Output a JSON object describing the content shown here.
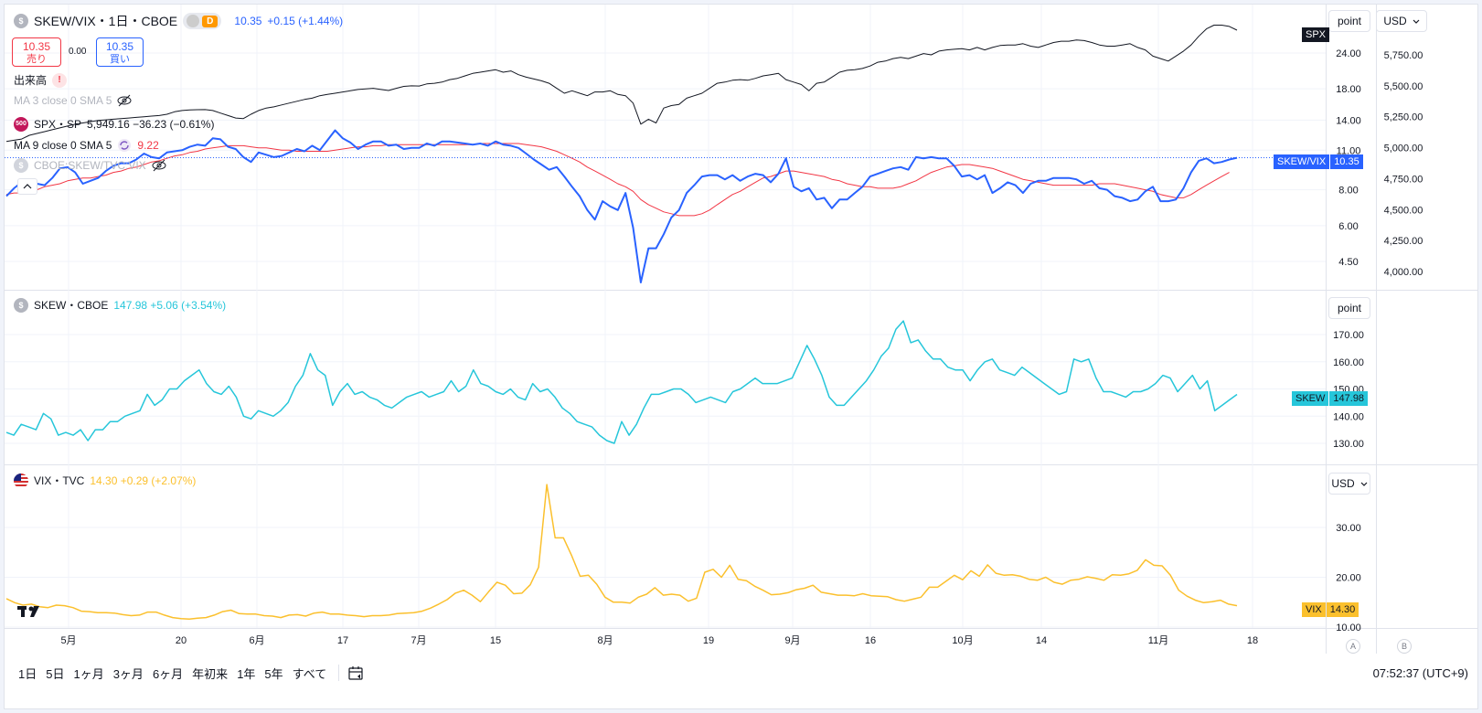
{
  "main_symbol": {
    "title": "SKEW/VIX・1日・CBOE",
    "interval_badge": "D",
    "last": "10.35",
    "change": "+0.15 (+1.44%)"
  },
  "trade": {
    "sell_price": "10.35",
    "sell_label": "売り",
    "spread": "0.00",
    "buy_price": "10.35",
    "buy_label": "買い"
  },
  "indicators": {
    "volume": "出来高",
    "volume_warn": "!",
    "ma1": "MA 3 close 0 SMA 5",
    "spx_icon": "500",
    "spx_name": "SPX・SP",
    "spx_value": "5,949.16 −36.23 (−0.61%)",
    "ma2": "MA 9 close 0 SMA 5",
    "ma2_value": "9.22",
    "compare": "CBOE:SKEW/TVC:VIX"
  },
  "skew_legend": {
    "name": "SKEW・CBOE",
    "value": "147.98 +5.06 (+3.54%)"
  },
  "vix_legend": {
    "name": "VIX・TVC",
    "value": "14.30 +0.29 (+2.07%)"
  },
  "scale_labels": {
    "point1": "point",
    "usd1": "USD",
    "point2": "point",
    "usd2": "USD"
  },
  "price_tags": {
    "spx": "SPX",
    "skewvix_name": "SKEW/VIX",
    "skewvix_val": "10.35",
    "skew_name": "SKEW",
    "skew_val": "147.98",
    "vix_name": "VIX",
    "vix_val": "14.30"
  },
  "bottom": {
    "ranges": [
      "1日",
      "5日",
      "1ヶ月",
      "3ヶ月",
      "6ヶ月",
      "年初来",
      "1年",
      "5年",
      "すべて"
    ],
    "clock": "07:52:37 (UTC+9)",
    "a_label": "A",
    "b_label": "B"
  },
  "colors": {
    "spx": "#131722",
    "skewvix": "#2962ff",
    "ma": "#f23645",
    "skew": "#26c6da",
    "vix": "#fbc02d",
    "grid": "#f0f3fa"
  },
  "chart_data": {
    "type": "line",
    "x_ticks": [
      "5月",
      "20",
      "6月",
      "17",
      "7月",
      "15",
      "8月",
      "19",
      "9月",
      "16",
      "10月",
      "14",
      "11月",
      "18"
    ],
    "panes": [
      {
        "name": "main",
        "left_axis_ticks": [
          "24.00",
          "18.00",
          "14.00",
          "11.00",
          "8.00",
          "6.00",
          "4.50"
        ],
        "right_axis_ticks": [
          "5,750.00",
          "5,500.00",
          "5,250.00",
          "5,000.00",
          "4,750.00",
          "4,500.00",
          "4,250.00",
          "4,000.00"
        ],
        "series": [
          {
            "name": "SKEW/VIX",
            "values": [
              7.6,
              8.1,
              8.5,
              8.6,
              8.4,
              8.3,
              8.8,
              9.5,
              9.6,
              9.2,
              8.4,
              8.6,
              8.8,
              9.3,
              9.7,
              9.9,
              9.9,
              10.2,
              10.7,
              10.4,
              10.3,
              10.8,
              10.9,
              11.0,
              11.3,
              11.5,
              11.4,
              12.1,
              12.0,
              11.3,
              11.1,
              10.4,
              10.0,
              10.8,
              10.6,
              10.4,
              10.5,
              10.8,
              11.1,
              10.9,
              11.4,
              11.0,
              11.9,
              12.9,
              12.1,
              11.7,
              11.1,
              11.5,
              11.8,
              11.8,
              11.4,
              11.5,
              11.1,
              11.2,
              11.2,
              11.6,
              11.4,
              11.8,
              11.8,
              11.7,
              11.6,
              11.5,
              11.6,
              11.4,
              11.8,
              11.5,
              11.4,
              11.2,
              10.7,
              10.2,
              9.8,
              9.4,
              9.6,
              8.9,
              8.2,
              7.6,
              6.8,
              6.3,
              7.3,
              7.0,
              6.8,
              7.8,
              5.9,
              3.8,
              5.0,
              5.0,
              5.6,
              6.4,
              6.8,
              7.8,
              8.3,
              8.9,
              9.0,
              9.0,
              8.7,
              9.0,
              8.6,
              8.9,
              9.1,
              9.0,
              8.5,
              9.1,
              10.3,
              8.2,
              7.9,
              8.1,
              7.4,
              7.5,
              6.9,
              7.4,
              7.4,
              7.8,
              8.2,
              8.9,
              9.1,
              9.3,
              9.5,
              9.6,
              9.4,
              10.4,
              10.3,
              10.4,
              10.3,
              10.3,
              9.7,
              8.9,
              9.0,
              8.7,
              9.0,
              7.8,
              8.1,
              8.5,
              8.3,
              7.8,
              8.4,
              8.6,
              8.6,
              8.8,
              8.8,
              8.8,
              8.7,
              8.4,
              8.6,
              8.1,
              8.0,
              7.6,
              7.5,
              7.3,
              7.4,
              7.9,
              8.2,
              7.3,
              7.3,
              7.4,
              8.1,
              9.2,
              10.1,
              10.3,
              9.9,
              10.0,
              10.2,
              10.35
            ]
          },
          {
            "name": "MA 9",
            "values": [
              7.7,
              7.8,
              7.8,
              7.9,
              8.0,
              8.2,
              8.3,
              8.4,
              8.6,
              8.7,
              8.8,
              8.8,
              8.9,
              9.0,
              9.2,
              9.3,
              9.5,
              9.6,
              9.8,
              10.0,
              10.1,
              10.3,
              10.5,
              10.6,
              10.8,
              10.9,
              11.1,
              11.2,
              11.3,
              11.4,
              11.4,
              11.4,
              11.3,
              11.2,
              11.2,
              11.1,
              11.0,
              11.0,
              10.9,
              10.9,
              10.9,
              10.9,
              10.9,
              11.0,
              11.1,
              11.2,
              11.3,
              11.3,
              11.4,
              11.4,
              11.5,
              11.5,
              11.5,
              11.5,
              11.5,
              11.5,
              11.5,
              11.5,
              11.5,
              11.5,
              11.5,
              11.5,
              11.6,
              11.6,
              11.6,
              11.6,
              11.6,
              11.6,
              11.5,
              11.4,
              11.3,
              11.1,
              10.9,
              10.6,
              10.3,
              10.0,
              9.6,
              9.3,
              9.0,
              8.7,
              8.4,
              8.2,
              7.9,
              7.4,
              7.1,
              6.9,
              6.7,
              6.6,
              6.5,
              6.5,
              6.5,
              6.6,
              6.8,
              7.1,
              7.4,
              7.7,
              7.9,
              8.2,
              8.5,
              8.8,
              8.9,
              9.1,
              9.3,
              9.3,
              9.2,
              9.1,
              9.0,
              8.9,
              8.7,
              8.6,
              8.4,
              8.3,
              8.2,
              8.2,
              8.1,
              8.1,
              8.1,
              8.2,
              8.4,
              8.6,
              8.9,
              9.2,
              9.4,
              9.6,
              9.7,
              9.8,
              9.8,
              9.7,
              9.6,
              9.5,
              9.3,
              9.1,
              8.9,
              8.7,
              8.6,
              8.5,
              8.4,
              8.3,
              8.3,
              8.3,
              8.3,
              8.3,
              8.3,
              8.4,
              8.4,
              8.4,
              8.3,
              8.2,
              8.1,
              8.0,
              7.9,
              7.7,
              7.6,
              7.5,
              7.5,
              7.7,
              8.0,
              8.3,
              8.6,
              8.9,
              9.2
            ]
          },
          {
            "name": "SPX",
            "axis": "right",
            "values": [
              5050,
              5060,
              5070,
              5100,
              5115,
              5130,
              5145,
              5160,
              5175,
              5190,
              5200,
              5210,
              5220,
              5225,
              5230,
              5235,
              5240,
              5245,
              5250,
              5255,
              5260,
              5270,
              5290,
              5300,
              5305,
              5307,
              5308,
              5300,
              5280,
              5260,
              5240,
              5235,
              5270,
              5300,
              5320,
              5330,
              5345,
              5360,
              5375,
              5390,
              5400,
              5420,
              5430,
              5440,
              5450,
              5460,
              5470,
              5475,
              5480,
              5470,
              5462,
              5480,
              5495,
              5500,
              5498,
              5515,
              5520,
              5530,
              5550,
              5560,
              5580,
              5600,
              5610,
              5620,
              5630,
              5610,
              5620,
              5590,
              5570,
              5555,
              5540,
              5520,
              5480,
              5440,
              5460,
              5440,
              5420,
              5450,
              5450,
              5460,
              5430,
              5420,
              5360,
              5190,
              5230,
              5200,
              5320,
              5340,
              5350,
              5400,
              5420,
              5440,
              5480,
              5520,
              5530,
              5545,
              5550,
              5545,
              5560,
              5580,
              5590,
              5600,
              5550,
              5530,
              5510,
              5460,
              5520,
              5530,
              5570,
              5610,
              5625,
              5630,
              5640,
              5660,
              5690,
              5700,
              5720,
              5730,
              5720,
              5740,
              5760,
              5750,
              5780,
              5790,
              5795,
              5800,
              5790,
              5810,
              5790,
              5810,
              5825,
              5830,
              5830,
              5840,
              5820,
              5810,
              5830,
              5850,
              5860,
              5860,
              5870,
              5865,
              5850,
              5830,
              5820,
              5820,
              5830,
              5840,
              5810,
              5790,
              5740,
              5720,
              5700,
              5740,
              5780,
              5830,
              5900,
              5960,
              5990,
              5990,
              5980,
              5949
            ]
          }
        ]
      },
      {
        "name": "SKEW",
        "y_ticks": [
          "170.00",
          "160.00",
          "150.00",
          "140.00",
          "130.00"
        ],
        "series": [
          {
            "name": "SKEW",
            "values": [
              134,
              133,
              137,
              136,
              135,
              141,
              139,
              133,
              134,
              133,
              135,
              131,
              135,
              135,
              138,
              138,
              140,
              141,
              142,
              148,
              144,
              146,
              150,
              150,
              153,
              155,
              157,
              152,
              149,
              148,
              151,
              147,
              140,
              139,
              142,
              141,
              140,
              142,
              145,
              151,
              155,
              163,
              157,
              155,
              144,
              149,
              152,
              148,
              149,
              147,
              146,
              144,
              143,
              145,
              147,
              148,
              149,
              147,
              148,
              149,
              153,
              149,
              151,
              157,
              152,
              151,
              149,
              148,
              150,
              147,
              146,
              152,
              149,
              150,
              147,
              143,
              141,
              138,
              137,
              136,
              133,
              131,
              130,
              138,
              133,
              137,
              143,
              148,
              148,
              149,
              150,
              150,
              148,
              145,
              146,
              147,
              146,
              145,
              149,
              150,
              152,
              154,
              152,
              152,
              152,
              153,
              154,
              160,
              166,
              161,
              155,
              147,
              144,
              144,
              147,
              150,
              153,
              157,
              162,
              165,
              172,
              175,
              167,
              168,
              164,
              161,
              161,
              158,
              157,
              157,
              153,
              157,
              160,
              161,
              157,
              156,
              155,
              158,
              156,
              154,
              152,
              150,
              148,
              149,
              161,
              160,
              161,
              154,
              149,
              149,
              148,
              147,
              149,
              149,
              150,
              152,
              155,
              154,
              149,
              152,
              155,
              150,
              153,
              142,
              144,
              146,
              147.98
            ]
          }
        ]
      },
      {
        "name": "VIX",
        "y_ticks": [
          "30.00",
          "20.00",
          "10.00"
        ],
        "series": [
          {
            "name": "VIX",
            "values": [
              15.7,
              14.9,
              14.4,
              14.6,
              14.1,
              13.9,
              14.4,
              14.3,
              13.9,
              13.2,
              13.1,
              12.9,
              12.9,
              12.8,
              12.5,
              12.3,
              12.4,
              13.0,
              13.0,
              12.4,
              11.9,
              11.7,
              11.6,
              11.8,
              11.9,
              12.4,
              13.1,
              13.4,
              12.7,
              12.6,
              12.6,
              12.3,
              12.2,
              11.9,
              12.4,
              12.5,
              12.2,
              12.8,
              13.0,
              12.6,
              12.6,
              12.4,
              12.3,
              12.1,
              12.3,
              12.3,
              12.4,
              12.7,
              12.8,
              12.9,
              13.2,
              13.8,
              14.6,
              15.5,
              16.8,
              17.4,
              16.4,
              15.1,
              17.1,
              19.0,
              18.4,
              16.7,
              16.8,
              18.5,
              22.0,
              38.6,
              27.9,
              27.9,
              24.3,
              20.2,
              20.4,
              18.6,
              16.0,
              15.0,
              15.0,
              14.8,
              16.0,
              16.6,
              17.9,
              16.4,
              16.6,
              16.4,
              15.2,
              15.8,
              21.0,
              21.6,
              20.0,
              22.4,
              19.6,
              19.3,
              18.2,
              17.4,
              16.5,
              16.6,
              16.9,
              17.5,
              17.8,
              18.4,
              17.0,
              16.7,
              16.4,
              16.4,
              16.3,
              16.7,
              16.3,
              16.2,
              16.1,
              15.5,
              15.2,
              15.6,
              16.0,
              18.0,
              18.0,
              19.2,
              20.4,
              19.5,
              21.3,
              20.2,
              22.5,
              20.8,
              20.4,
              20.5,
              20.2,
              19.6,
              19.4,
              20.0,
              19.0,
              18.6,
              19.4,
              19.6,
              20.1,
              19.8,
              19.4,
              20.5,
              20.4,
              20.7,
              21.4,
              23.5,
              22.4,
              22.3,
              20.4,
              17.4,
              16.2,
              15.4,
              14.9,
              15.1,
              15.4,
              14.6,
              14.3
            ]
          }
        ]
      }
    ]
  }
}
